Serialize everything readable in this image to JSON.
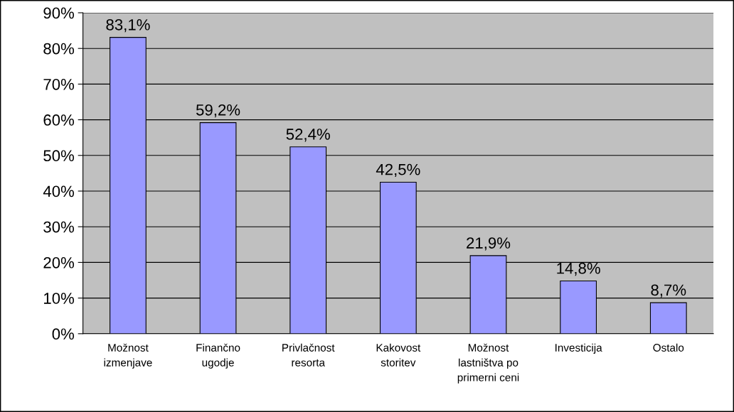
{
  "chart_data": {
    "type": "bar",
    "categories": [
      "Možnost\nizmenjave",
      "Finančno\nugodje",
      "Privlačnost\nresorta",
      "Kakovost\nstoritev",
      "Možnost\nlastništva po\nprimerni ceni",
      "Investicija",
      "Ostalo"
    ],
    "values": [
      83.1,
      59.2,
      52.4,
      42.5,
      21.9,
      14.8,
      8.7
    ],
    "value_labels": [
      "83,1%",
      "59,2%",
      "52,4%",
      "42,5%",
      "21,9%",
      "14,8%",
      "8,7%"
    ],
    "color": "#9999ff",
    "ylim": [
      0,
      90
    ],
    "yticks": [
      {
        "value": 0,
        "label": "0%"
      },
      {
        "value": 10,
        "label": "10%"
      },
      {
        "value": 20,
        "label": "20%"
      },
      {
        "value": 30,
        "label": "30%"
      },
      {
        "value": 40,
        "label": "40%"
      },
      {
        "value": 50,
        "label": "50%"
      },
      {
        "value": 60,
        "label": "60%"
      },
      {
        "value": 70,
        "label": "70%"
      },
      {
        "value": 80,
        "label": "80%"
      },
      {
        "value": 90,
        "label": "90%"
      }
    ],
    "grid": "y",
    "legend": false
  }
}
